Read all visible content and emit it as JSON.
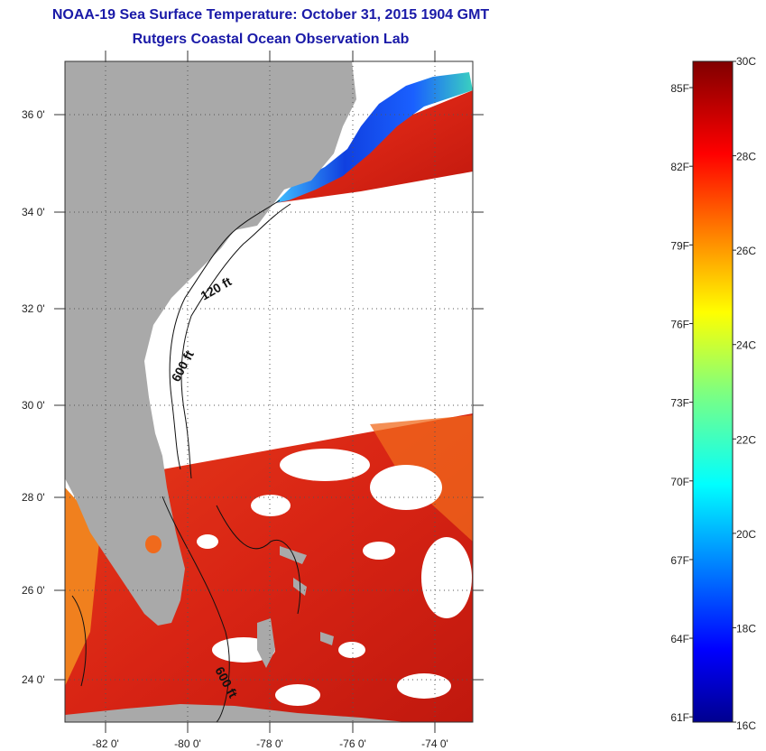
{
  "title": {
    "line1": "NOAA-19 Sea Surface Temperature:  October 31, 2015 1904 GMT",
    "line2": "Rutgers Coastal Ocean Observation Lab"
  },
  "map": {
    "lat_ticks": [
      "36 0'",
      "34 0'",
      "32 0'",
      "30 0'",
      "28 0'",
      "26 0'",
      "24 0'"
    ],
    "lon_ticks": [
      "-82 0'",
      "-80 0'",
      "-78 0'",
      "-76 0'",
      "-74 0'"
    ],
    "contour_labels": [
      "120 ft",
      "600 ft",
      "600 ft"
    ],
    "colors": {
      "land": "#a9a9a9",
      "no_data": "#ffffff",
      "warm_sst": "#e8301a",
      "cool_sst": "#1030d0"
    }
  },
  "colorbar": {
    "celsius_ticks": [
      "30C",
      "28C",
      "26C",
      "24C",
      "22C",
      "20C",
      "18C",
      "16C"
    ],
    "fahrenheit_ticks": [
      "85F",
      "82F",
      "79F",
      "76F",
      "73F",
      "70F",
      "67F",
      "64F",
      "61F"
    ],
    "scale": "jet",
    "min_c": 16,
    "max_c": 30
  }
}
